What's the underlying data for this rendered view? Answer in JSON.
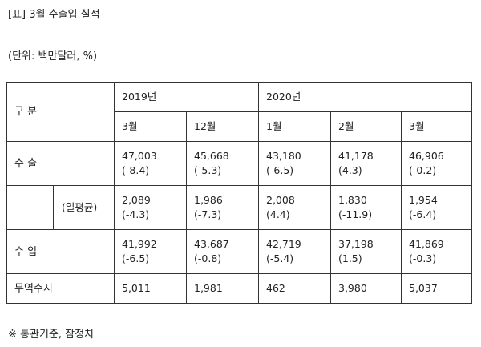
{
  "title": "[표] 3월 수출입 실적",
  "unit": "(단위: 백만달러, %)",
  "table": {
    "header_label": "구 분",
    "years": [
      "2019년",
      "2020년"
    ],
    "months": [
      "3월",
      "12월",
      "1월",
      "2월",
      "3월"
    ],
    "rows": [
      {
        "label": "수 출",
        "values": [
          "47,003",
          "45,668",
          "43,180",
          "41,178",
          "46,906"
        ],
        "changes": [
          "(-8.4)",
          "(-5.3)",
          "(-6.5)",
          "(4.3)",
          "(-0.2)"
        ]
      },
      {
        "label": "(일평균)",
        "values": [
          "2,089",
          "1,986",
          "2,008",
          "1,830",
          "1,954"
        ],
        "changes": [
          "(-4.3)",
          "(-7.3)",
          "(4.4)",
          "(-11.9)",
          "(-6.4)"
        ]
      },
      {
        "label": "수 입",
        "values": [
          "41,992",
          "43,687",
          "42,719",
          "37,198",
          "41,869"
        ],
        "changes": [
          "(-6.5)",
          "(-0.8)",
          "(-5.4)",
          "(1.5)",
          "(-0.3)"
        ]
      }
    ],
    "balance": {
      "label": "무역수지",
      "values": [
        "5,011",
        "1,981",
        "462",
        "3,980",
        "5,037"
      ]
    }
  },
  "note": "※ 통관기준, 잠정치"
}
